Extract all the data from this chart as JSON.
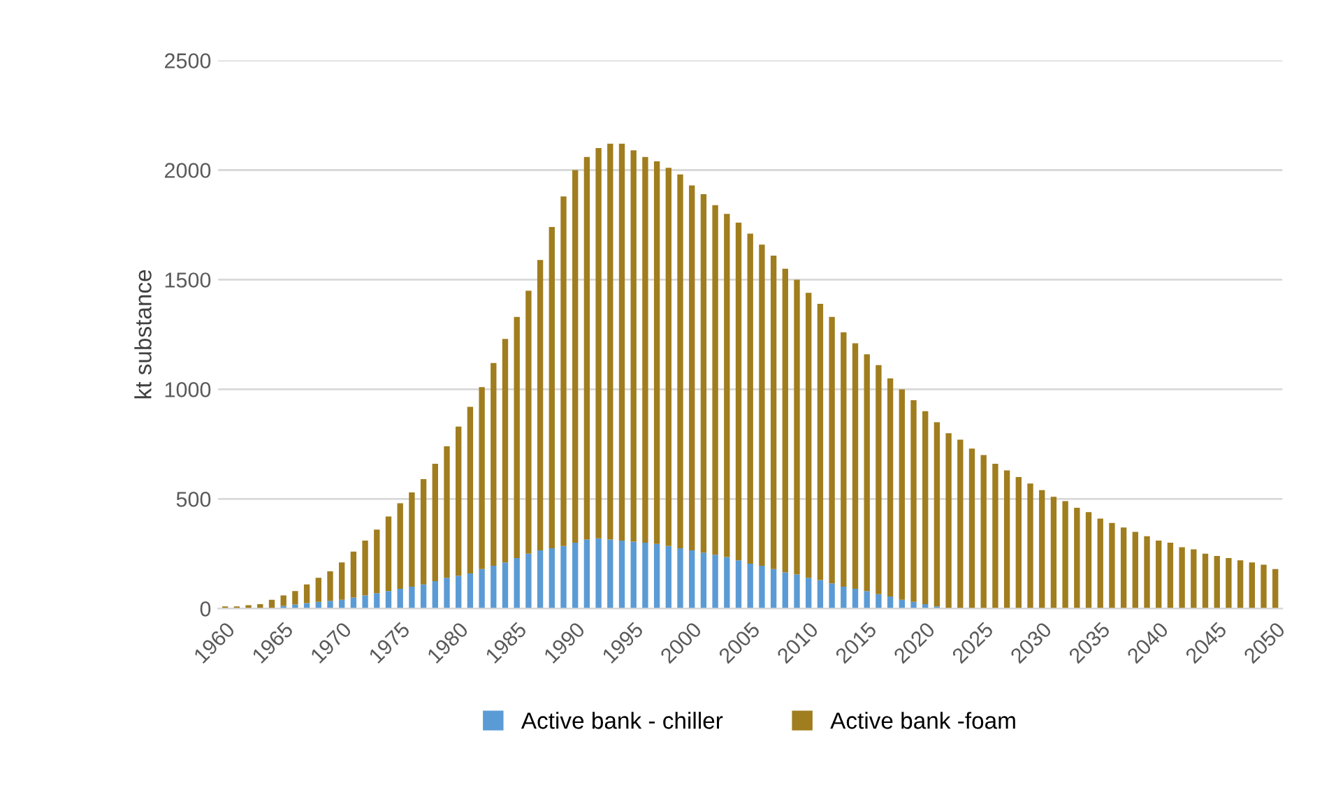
{
  "chart_data": {
    "type": "bar",
    "stacked": true,
    "ylabel": "kt substance",
    "categories": [
      "1960",
      null,
      null,
      null,
      null,
      "1965",
      null,
      null,
      null,
      null,
      "1970",
      null,
      null,
      null,
      null,
      "1975",
      null,
      null,
      null,
      null,
      "1980",
      null,
      null,
      null,
      null,
      "1985",
      null,
      null,
      null,
      null,
      "1990",
      null,
      null,
      null,
      null,
      "1995",
      null,
      null,
      null,
      null,
      "2000",
      null,
      null,
      null,
      null,
      "2005",
      null,
      null,
      null,
      null,
      "2010",
      null,
      null,
      null,
      null,
      "2015",
      null,
      null,
      null,
      null,
      "2020",
      null,
      null,
      null,
      null,
      "2025",
      null,
      null,
      null,
      null,
      "2030",
      null,
      null,
      null,
      null,
      "2035",
      null,
      null,
      null,
      null,
      "2040",
      null,
      null,
      null,
      null,
      "2045",
      null,
      null,
      null,
      null,
      "2050"
    ],
    "series": [
      {
        "name": "Active bank - chiller",
        "color": "#5b9bd5",
        "values": [
          0,
          0,
          0,
          0,
          0,
          12,
          18,
          25,
          30,
          35,
          40,
          50,
          60,
          70,
          80,
          90,
          100,
          110,
          125,
          140,
          150,
          160,
          180,
          195,
          210,
          230,
          250,
          265,
          275,
          285,
          300,
          315,
          320,
          315,
          310,
          305,
          300,
          295,
          285,
          275,
          265,
          255,
          245,
          235,
          220,
          205,
          195,
          180,
          165,
          155,
          140,
          130,
          115,
          100,
          90,
          80,
          65,
          55,
          40,
          30,
          20,
          10,
          0,
          0,
          0,
          0,
          0,
          0,
          0,
          0,
          0,
          0,
          0,
          0,
          0,
          0,
          0,
          0,
          0,
          0,
          0,
          0,
          0,
          0,
          0,
          0,
          0,
          0,
          0,
          0,
          0
        ]
      },
      {
        "name": "Active bank -foam",
        "color": "#a07d1e",
        "values": [
          10,
          10,
          15,
          20,
          40,
          48,
          62,
          85,
          110,
          135,
          170,
          210,
          250,
          290,
          340,
          390,
          430,
          480,
          535,
          600,
          680,
          760,
          830,
          925,
          1020,
          1100,
          1200,
          1325,
          1465,
          1595,
          1700,
          1745,
          1780,
          1805,
          1810,
          1785,
          1760,
          1745,
          1725,
          1705,
          1665,
          1635,
          1595,
          1565,
          1540,
          1505,
          1465,
          1430,
          1385,
          1345,
          1300,
          1260,
          1215,
          1160,
          1120,
          1080,
          1045,
          995,
          960,
          920,
          880,
          840,
          800,
          770,
          730,
          700,
          660,
          630,
          600,
          570,
          540,
          510,
          490,
          460,
          440,
          410,
          390,
          370,
          350,
          330,
          310,
          300,
          280,
          270,
          250,
          240,
          230,
          220,
          210,
          200,
          180
        ]
      }
    ],
    "ylim": [
      0,
      2500
    ],
    "yticks": [
      0,
      500,
      1000,
      1500,
      2000,
      2500
    ],
    "grid": "y",
    "legend": "bottom"
  }
}
